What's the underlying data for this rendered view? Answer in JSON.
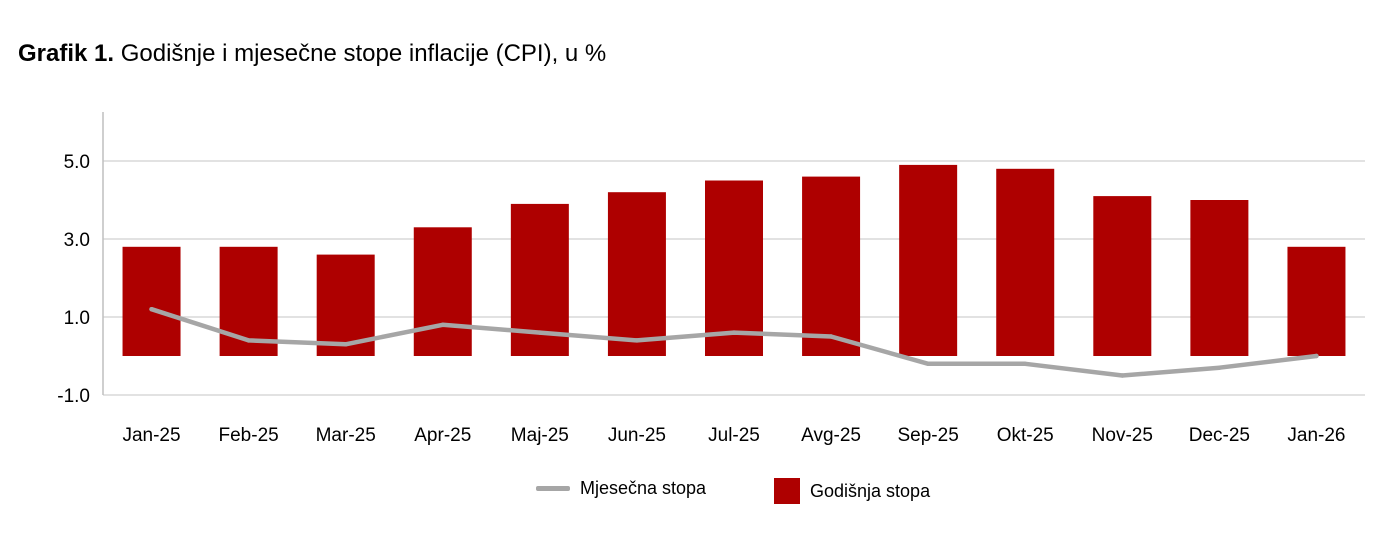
{
  "title": {
    "prefix": "Grafik 1.",
    "text": "Godišnje i mjesečne stope inflacije (CPI), u %"
  },
  "colors": {
    "bar": "#ae0000",
    "line": "#a6a6a6",
    "grid": "#d9d9d9",
    "axis": "#bfbfbf"
  },
  "chart_data": {
    "type": "bar",
    "categories": [
      "Jan-25",
      "Feb-25",
      "Mar-25",
      "Apr-25",
      "Maj-25",
      "Jun-25",
      "Jul-25",
      "Avg-25",
      "Sep-25",
      "Okt-25",
      "Nov-25",
      "Dec-25",
      "Jan-26"
    ],
    "series": [
      {
        "name": "Godišnja stopa",
        "type": "bar",
        "values": [
          2.8,
          2.8,
          2.6,
          3.3,
          3.9,
          4.2,
          4.5,
          4.6,
          4.9,
          4.8,
          4.1,
          4.0,
          2.8
        ]
      },
      {
        "name": "Mjesečna stopa",
        "type": "line",
        "values": [
          1.2,
          0.4,
          0.3,
          0.8,
          0.6,
          0.4,
          0.6,
          0.5,
          -0.2,
          -0.2,
          -0.5,
          -0.3,
          0.0
        ]
      }
    ],
    "ylim": [
      -1.0,
      6.0
    ],
    "yticks": [
      -1.0,
      1.0,
      3.0,
      5.0
    ],
    "ytick_labels": [
      "-1.0",
      "1.0",
      "3.0",
      "5.0"
    ],
    "grid": true,
    "legend": "bottom"
  }
}
